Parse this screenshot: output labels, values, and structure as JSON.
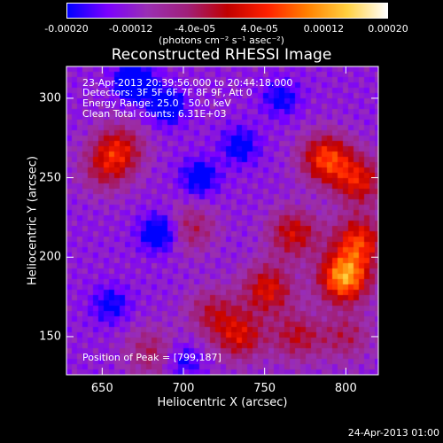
{
  "chart_data": {
    "type": "heatmap",
    "title": "Reconstructed RHESSI Image",
    "xlabel": "Heliocentric X (arcsec)",
    "ylabel": "Heliocentric Y (arcsec)",
    "xlim": [
      628,
      820
    ],
    "ylim": [
      126,
      320
    ],
    "x_ticks": [
      650,
      700,
      750,
      800
    ],
    "x_tick_labels": [
      "650",
      "700",
      "750",
      "800"
    ],
    "y_ticks": [
      150,
      200,
      250,
      300
    ],
    "y_tick_labels": [
      "150",
      "200",
      "250",
      "300"
    ],
    "colorbar": {
      "min": -0.0002,
      "max": 0.0002,
      "ticks": [
        -0.0002,
        -0.00012,
        -4e-05,
        4e-05,
        0.00012,
        0.0002
      ],
      "tick_labels": [
        "-0.00020",
        "-0.00012",
        "-4.0e-05",
        "4.0e-05",
        "0.00012",
        "0.00020"
      ],
      "units_label": "(photons cm⁻² s⁻¹ asec⁻²)",
      "colormap": [
        "#0000ff",
        "#7b00ff",
        "#9a2fb3",
        "#a0207a",
        "#c00000",
        "#ff2000",
        "#ff8000",
        "#ffd040",
        "#ffffff"
      ]
    },
    "annotations": [
      "23-Apr-2013 20:39:56.000 to 20:44:18.000",
      "Detectors: 3F 5F 6F 7F 8F 9F, Att 0",
      "Energy Range: 25.0 - 50.0 keV",
      "Clean    Total counts: 6.31E+03"
    ],
    "peak_label": "Position of Peak = [799,187]",
    "peak_position": [
      799,
      187
    ],
    "hot_sources": [
      {
        "x": 799,
        "y": 187,
        "intensity": 1.0
      },
      {
        "x": 808,
        "y": 210,
        "intensity": 0.7
      },
      {
        "x": 788,
        "y": 262,
        "intensity": 0.75
      },
      {
        "x": 808,
        "y": 248,
        "intensity": 0.6
      },
      {
        "x": 752,
        "y": 180,
        "intensity": 0.6
      },
      {
        "x": 768,
        "y": 215,
        "intensity": 0.55
      },
      {
        "x": 735,
        "y": 150,
        "intensity": 0.55
      },
      {
        "x": 718,
        "y": 165,
        "intensity": 0.4
      },
      {
        "x": 770,
        "y": 150,
        "intensity": 0.45
      },
      {
        "x": 660,
        "y": 268,
        "intensity": 0.55
      },
      {
        "x": 652,
        "y": 255,
        "intensity": 0.35
      },
      {
        "x": 705,
        "y": 218,
        "intensity": 0.35
      },
      {
        "x": 680,
        "y": 140,
        "intensity": 0.35
      },
      {
        "x": 800,
        "y": 150,
        "intensity": 0.35
      }
    ],
    "cold_sources": [
      {
        "x": 670,
        "y": 310,
        "intensity": 0.7
      },
      {
        "x": 690,
        "y": 295,
        "intensity": 0.5
      },
      {
        "x": 685,
        "y": 215,
        "intensity": 0.55
      },
      {
        "x": 710,
        "y": 250,
        "intensity": 0.45
      },
      {
        "x": 735,
        "y": 270,
        "intensity": 0.4
      },
      {
        "x": 760,
        "y": 300,
        "intensity": 0.35
      },
      {
        "x": 655,
        "y": 170,
        "intensity": 0.35
      },
      {
        "x": 700,
        "y": 135,
        "intensity": 0.3
      }
    ]
  },
  "footer": {
    "timestamp": "24-Apr-2013 01:00"
  }
}
